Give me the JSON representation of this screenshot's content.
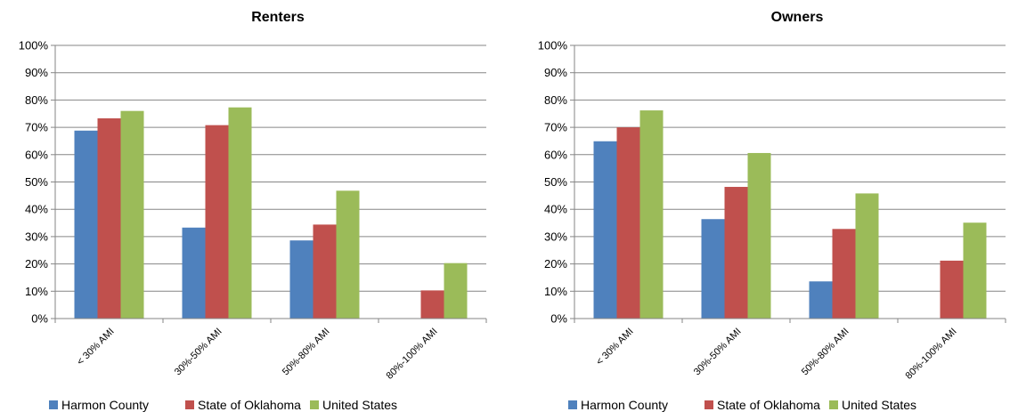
{
  "chart_data": [
    {
      "type": "bar",
      "title": "Renters",
      "categories": [
        "< 30% AMI",
        "30%-50% AMI",
        "50%-80% AMI",
        "80%-100% AMI"
      ],
      "series": [
        {
          "name": "Harmon County",
          "color": "#4F81BD",
          "values": [
            68.8,
            33.3,
            28.6,
            0
          ]
        },
        {
          "name": "State of Oklahoma",
          "color": "#C0504D",
          "values": [
            73.3,
            70.8,
            34.4,
            10.3
          ]
        },
        {
          "name": "United States",
          "color": "#9BBB59",
          "values": [
            76.0,
            77.3,
            46.8,
            20.3
          ]
        }
      ],
      "ylim": [
        0,
        100
      ],
      "yticks": [
        "0%",
        "10%",
        "20%",
        "30%",
        "40%",
        "50%",
        "60%",
        "70%",
        "80%",
        "90%",
        "100%"
      ],
      "grid": true,
      "legend": "bottom"
    },
    {
      "type": "bar",
      "title": "Owners",
      "categories": [
        "< 30% AMI",
        "30%-50% AMI",
        "50%-80% AMI",
        "80%-100% AMI"
      ],
      "series": [
        {
          "name": "Harmon County",
          "color": "#4F81BD",
          "values": [
            64.9,
            36.4,
            13.6,
            0
          ]
        },
        {
          "name": "State of Oklahoma",
          "color": "#C0504D",
          "values": [
            70.0,
            48.2,
            32.8,
            21.2
          ]
        },
        {
          "name": "United States",
          "color": "#9BBB59",
          "values": [
            76.2,
            60.6,
            45.8,
            35.1
          ]
        }
      ],
      "ylim": [
        0,
        100
      ],
      "yticks": [
        "0%",
        "10%",
        "20%",
        "30%",
        "40%",
        "50%",
        "60%",
        "70%",
        "80%",
        "90%",
        "100%"
      ],
      "grid": true,
      "legend": "bottom"
    }
  ]
}
